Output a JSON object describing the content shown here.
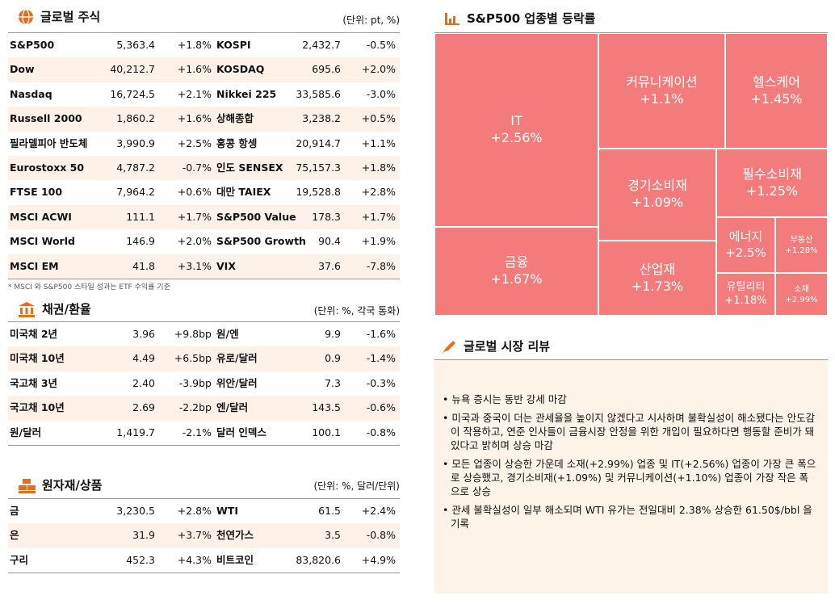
{
  "global_stocks": {
    "title": "글로벌 주식",
    "unit": "(단위: pt, %)",
    "rows": [
      [
        "S&P500",
        "5,363.4",
        "+1.8%",
        "KOSPI",
        "2,432.7",
        "-0.5%"
      ],
      [
        "Dow",
        "40,212.7",
        "+1.6%",
        "KOSDAQ",
        "695.6",
        "+2.0%"
      ],
      [
        "Nasdaq",
        "16,724.5",
        "+2.1%",
        "Nikkei 225",
        "33,585.6",
        "-3.0%"
      ],
      [
        "Russell 2000",
        "1,860.2",
        "+1.6%",
        "상해종합",
        "3,238.2",
        "+0.5%"
      ],
      [
        "필라델피아 반도체",
        "3,990.9",
        "+2.5%",
        "홍콩 항셍",
        "20,914.7",
        "+1.1%"
      ],
      [
        "Eurostoxx 50",
        "4,787.2",
        "-0.7%",
        "인도 SENSEX",
        "75,157.3",
        "+1.8%"
      ],
      [
        "FTSE 100",
        "7,964.2",
        "+0.6%",
        "대만 TAIEX",
        "19,528.8",
        "+2.8%"
      ],
      [
        "MSCI ACWI",
        "111.1",
        "+1.7%",
        "S&P500 Value",
        "178.3",
        "+1.7%"
      ],
      [
        "MSCI World",
        "146.9",
        "+2.0%",
        "S&P500 Growth",
        "90.4",
        "+1.9%"
      ],
      [
        "MSCI EM",
        "41.8",
        "+3.1%",
        "VIX",
        "37.6",
        "-7.8%"
      ]
    ],
    "note": "* MSCI 와 S&P500 스타일 성과는 ETF 수익률 기준"
  },
  "bonds_fx": {
    "title": "채권/환율",
    "unit": "(단위: %, 각국 통화)",
    "rows": [
      [
        "미국채 2년",
        "3.96",
        "+9.8bp",
        "원/엔",
        "9.9",
        "-1.6%"
      ],
      [
        "미국채 10년",
        "4.49",
        "+6.5bp",
        "유로/달러",
        "0.9",
        "-1.4%"
      ],
      [
        "국고채 3년",
        "2.40",
        "-3.9bp",
        "위안/달러",
        "7.3",
        "-0.3%"
      ],
      [
        "국고채 10년",
        "2.69",
        "-2.2bp",
        "엔/달러",
        "143.5",
        "-0.6%"
      ],
      [
        "원/달러",
        "1,419.7",
        "-2.1%",
        "달러 인덱스",
        "100.1",
        "-0.8%"
      ]
    ]
  },
  "commodities": {
    "title": "원자재/상품",
    "unit": "(단위: %, 달러/단위)",
    "rows": [
      [
        "금",
        "3,230.5",
        "+2.8%",
        "WTI",
        "61.5",
        "+2.4%"
      ],
      [
        "은",
        "31.9",
        "+3.7%",
        "천연가스",
        "3.5",
        "-0.8%"
      ],
      [
        "구리",
        "452.3",
        "+4.3%",
        "비트코인",
        "83,820.6",
        "+4.9%"
      ]
    ]
  },
  "sector": {
    "title": "S&P500 업종별 등락률",
    "cells": [
      {
        "label": "IT",
        "value": "+2.56%"
      },
      {
        "label": "금융",
        "value": "+1.67%"
      },
      {
        "label": "커뮤니케이션",
        "value": "+1.1%"
      },
      {
        "label": "헬스케어",
        "value": "+1.45%"
      },
      {
        "label": "경기소비재",
        "value": "+1.09%"
      },
      {
        "label": "필수소비재",
        "value": "+1.25%"
      },
      {
        "label": "산업재",
        "value": "+1.73%"
      },
      {
        "label": "에너지",
        "value": "+2.5%"
      },
      {
        "label": "부동산",
        "value": "+1.28%"
      },
      {
        "label": "유틸리티",
        "value": "+1.18%"
      },
      {
        "label": "소재",
        "value": "+2.99%"
      }
    ]
  },
  "review": {
    "title": "글로벌 시장 리뷰",
    "items": [
      "• 뉴욕 증시는 동반 강세 마감",
      "• 미국과 중국이 더는 관세율을 높이지 않겠다고 시사하며 불확실성이 해소됐다는 안도감이 작용하고, 연준 인사들이 금융시장 안정을 위한 개입이 필요하다면 행동할 준비가 돼 있다고 밝히며 상승 마감",
      "• 모든 업종이 상승한 가운데 소재(+2.99%) 업종 및 IT(+2.56%) 업종이 가장 큰 폭으로 상승했고, 경기소비재(+1.09%) 및 커뮤니케이션(+1.10%) 업종이 가장 작은 폭으로 상승",
      "• 관세 불확실성이 일부 해소되며 WTI 유가는 전일대비 2.38% 상승한 61.50$/bbl 을 기록"
    ]
  }
}
